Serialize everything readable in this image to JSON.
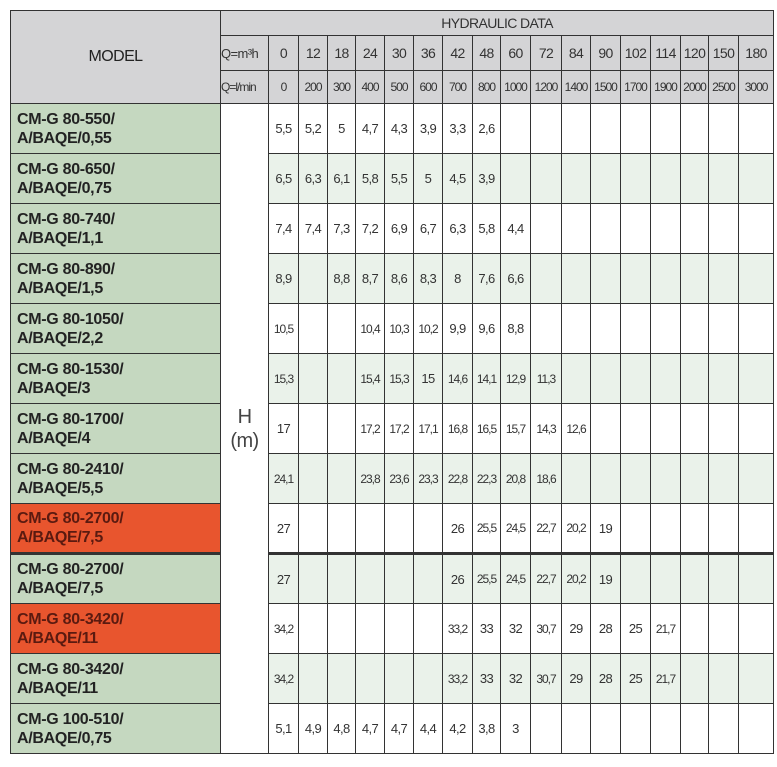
{
  "header": {
    "model_label": "MODEL",
    "group_label": "HYDRAULIC DATA",
    "q_m3h_label": "Q=m³h",
    "q_lmin_label": "Q=l/min",
    "h_label": "H",
    "h_unit": "(m)"
  },
  "q_m3h": [
    "0",
    "12",
    "18",
    "24",
    "30",
    "36",
    "42",
    "48",
    "60",
    "72",
    "84",
    "90",
    "102",
    "114",
    "120",
    "150",
    "180"
  ],
  "q_lmin": [
    "0",
    "200",
    "300",
    "400",
    "500",
    "600",
    "700",
    "800",
    "1000",
    "1200",
    "1400",
    "1500",
    "1700",
    "1900",
    "2000",
    "2500",
    "3000"
  ],
  "colors": {
    "model_bg": "#c5d8c0",
    "highlight_bg": "#e8552e",
    "header_bg": "#d4d4d6",
    "alt_row_bg": "#eaf2ea"
  },
  "rows": [
    {
      "model_line1": "CM-G 80-550/",
      "model_line2": "A/BAQE/0,55",
      "highlight": false,
      "values": [
        "5,5",
        "5,2",
        "5",
        "4,7",
        "4,3",
        "3,9",
        "3,3",
        "2,6",
        "",
        "",
        "",
        "",
        "",
        "",
        "",
        "",
        ""
      ]
    },
    {
      "model_line1": "CM-G 80-650/",
      "model_line2": "A/BAQE/0,75",
      "highlight": false,
      "values": [
        "6,5",
        "6,3",
        "6,1",
        "5,8",
        "5,5",
        "5",
        "4,5",
        "3,9",
        "",
        "",
        "",
        "",
        "",
        "",
        "",
        "",
        ""
      ]
    },
    {
      "model_line1": "CM-G 80-740/",
      "model_line2": "A/BAQE/1,1",
      "highlight": false,
      "values": [
        "7,4",
        "7,4",
        "7,3",
        "7,2",
        "6,9",
        "6,7",
        "6,3",
        "5,8",
        "4,4",
        "",
        "",
        "",
        "",
        "",
        "",
        "",
        ""
      ]
    },
    {
      "model_line1": "CM-G 80-890/",
      "model_line2": "A/BAQE/1,5",
      "highlight": false,
      "values": [
        "8,9",
        "",
        "8,8",
        "8,7",
        "8,6",
        "8,3",
        "8",
        "7,6",
        "6,6",
        "",
        "",
        "",
        "",
        "",
        "",
        "",
        ""
      ]
    },
    {
      "model_line1": "CM-G 80-1050/",
      "model_line2": "A/BAQE/2,2",
      "highlight": false,
      "values": [
        "10,5",
        "",
        "",
        "10,4",
        "10,3",
        "10,2",
        "9,9",
        "9,6",
        "8,8",
        "",
        "",
        "",
        "",
        "",
        "",
        "",
        ""
      ]
    },
    {
      "model_line1": "CM-G 80-1530/",
      "model_line2": "A/BAQE/3",
      "highlight": false,
      "values": [
        "15,3",
        "",
        "",
        "15,4",
        "15,3",
        "15",
        "14,6",
        "14,1",
        "12,9",
        "11,3",
        "",
        "",
        "",
        "",
        "",
        "",
        ""
      ]
    },
    {
      "model_line1": "CM-G 80-1700/",
      "model_line2": "A/BAQE/4",
      "highlight": false,
      "values": [
        "17",
        "",
        "",
        "17,2",
        "17,2",
        "17,1",
        "16,8",
        "16,5",
        "15,7",
        "14,3",
        "12,6",
        "",
        "",
        "",
        "",
        "",
        ""
      ]
    },
    {
      "model_line1": "CM-G 80-2410/",
      "model_line2": "A/BAQE/5,5",
      "highlight": false,
      "values": [
        "24,1",
        "",
        "",
        "23,8",
        "23,6",
        "23,3",
        "22,8",
        "22,3",
        "20,8",
        "18,6",
        "",
        "",
        "",
        "",
        "",
        "",
        ""
      ]
    },
    {
      "model_line1": "CM-G 80-2700/",
      "model_line2": "A/BAQE/7,5",
      "highlight": true,
      "values": [
        "27",
        "",
        "",
        "",
        "",
        "",
        "26",
        "25,5",
        "24,5",
        "22,7",
        "20,2",
        "19",
        "",
        "",
        "",
        "",
        ""
      ]
    },
    {
      "model_line1": "CM-G 80-2700/",
      "model_line2": "A/BAQE/7,5",
      "highlight": false,
      "values": [
        "27",
        "",
        "",
        "",
        "",
        "",
        "26",
        "25,5",
        "24,5",
        "22,7",
        "20,2",
        "19",
        "",
        "",
        "",
        "",
        ""
      ]
    },
    {
      "model_line1": "CM-G 80-3420/",
      "model_line2": "A/BAQE/11",
      "highlight": true,
      "values": [
        "34,2",
        "",
        "",
        "",
        "",
        "",
        "33,2",
        "33",
        "32",
        "30,7",
        "29",
        "28",
        "25",
        "21,7",
        "",
        "",
        ""
      ]
    },
    {
      "model_line1": "CM-G 80-3420/",
      "model_line2": "A/BAQE/11",
      "highlight": false,
      "values": [
        "34,2",
        "",
        "",
        "",
        "",
        "",
        "33,2",
        "33",
        "32",
        "30,7",
        "29",
        "28",
        "25",
        "21,7",
        "",
        "",
        ""
      ]
    },
    {
      "model_line1": "CM-G 100-510/",
      "model_line2": "A/BAQE/0,75",
      "highlight": false,
      "values": [
        "5,1",
        "4,9",
        "4,8",
        "4,7",
        "4,7",
        "4,4",
        "4,2",
        "3,8",
        "3",
        "",
        "",
        "",
        "",
        "",
        "",
        "",
        ""
      ]
    }
  ]
}
